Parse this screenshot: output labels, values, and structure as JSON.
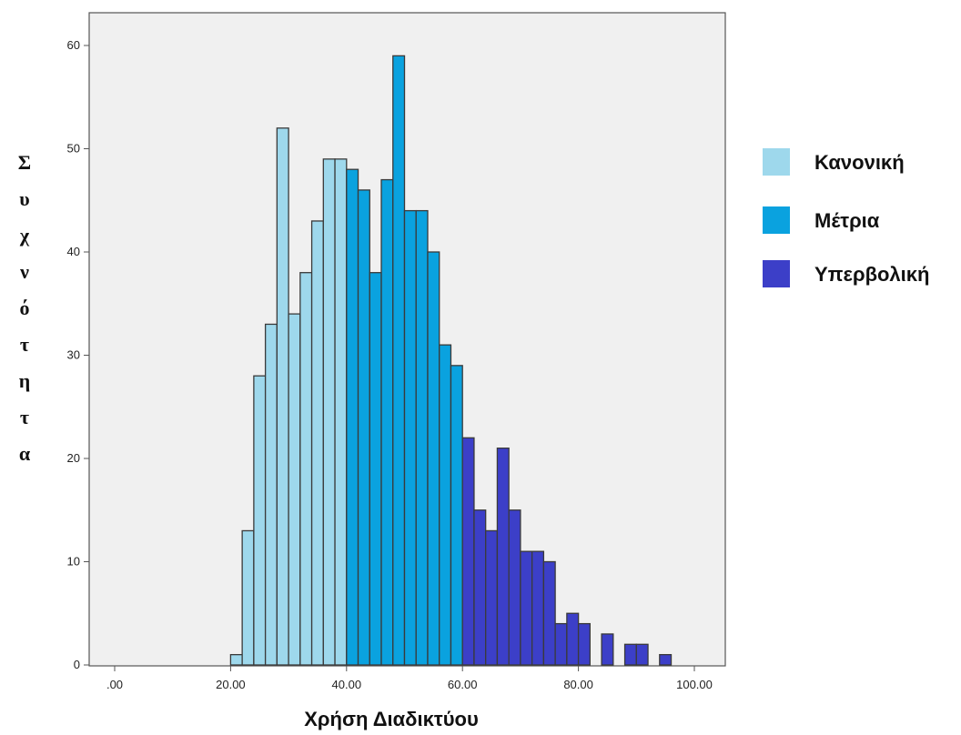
{
  "chart_data": {
    "type": "bar",
    "xlabel": "Χρήση Διαδικτύου",
    "ylabel": "Συχνότητα",
    "x_ticks": [
      ".00",
      "20.00",
      "40.00",
      "60.00",
      "80.00",
      "100.00"
    ],
    "y_ticks": [
      "0",
      "10",
      "20",
      "30",
      "40",
      "50",
      "60"
    ],
    "xlim": [
      0,
      102
    ],
    "ylim": [
      0,
      63
    ],
    "grid": false,
    "legend_position": "right",
    "bin_width": 2,
    "series": [
      {
        "name": "Κανονική",
        "color": "#9ed8ec",
        "bin_starts": [
          20,
          22,
          24,
          26,
          28,
          30,
          32,
          34,
          36,
          38
        ],
        "values": [
          1,
          13,
          28,
          33,
          52,
          34,
          38,
          43,
          49,
          49
        ]
      },
      {
        "name": "Μέτρια",
        "color": "#0aa2df",
        "bin_starts": [
          40,
          42,
          44,
          46,
          48,
          50,
          52,
          54,
          56,
          58
        ],
        "values": [
          48,
          46,
          38,
          47,
          59,
          44,
          44,
          40,
          31,
          29
        ]
      },
      {
        "name": "Υπερβολική",
        "color": "#3c3fc8",
        "bin_starts": [
          60,
          62,
          64,
          66,
          68,
          70,
          72,
          74,
          76,
          78,
          80,
          82,
          84,
          86,
          88,
          90,
          92,
          94
        ],
        "values": [
          22,
          15,
          13,
          21,
          15,
          11,
          11,
          10,
          4,
          5,
          4,
          0,
          3,
          0,
          2,
          2,
          0,
          1
        ]
      }
    ]
  }
}
